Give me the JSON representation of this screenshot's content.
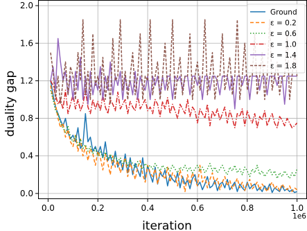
{
  "chart_data": {
    "type": "line",
    "xlabel": "iteration",
    "ylabel": "duality gap",
    "x_offset_label": "1e6",
    "xlim": [
      -0.04,
      1.04
    ],
    "ylim": [
      -0.06,
      2.06
    ],
    "xticks": [
      0.0,
      0.2,
      0.4,
      0.6,
      0.8,
      1.0
    ],
    "xtick_labels": [
      "0.0",
      "0.2",
      "0.4",
      "0.6",
      "0.8",
      "1.0"
    ],
    "yticks": [
      0.0,
      0.4,
      0.8,
      1.2,
      1.6,
      2.0
    ],
    "ytick_labels": [
      "0.0",
      "0.4",
      "0.8",
      "1.2",
      "1.6",
      "2.0"
    ],
    "grid": true,
    "legend_position": "top-right",
    "x": [
      0.01,
      0.02,
      0.03,
      0.04,
      0.05,
      0.06,
      0.07,
      0.08,
      0.09,
      0.1,
      0.11,
      0.12,
      0.13,
      0.14,
      0.15,
      0.16,
      0.17,
      0.18,
      0.19,
      0.2,
      0.21,
      0.22,
      0.23,
      0.24,
      0.25,
      0.26,
      0.27,
      0.28,
      0.29,
      0.3,
      0.31,
      0.32,
      0.33,
      0.34,
      0.35,
      0.36,
      0.37,
      0.38,
      0.39,
      0.4,
      0.41,
      0.42,
      0.43,
      0.44,
      0.45,
      0.46,
      0.47,
      0.48,
      0.49,
      0.5,
      0.51,
      0.52,
      0.53,
      0.54,
      0.55,
      0.56,
      0.57,
      0.58,
      0.59,
      0.6,
      0.61,
      0.62,
      0.63,
      0.64,
      0.65,
      0.66,
      0.67,
      0.68,
      0.69,
      0.7,
      0.71,
      0.72,
      0.73,
      0.74,
      0.75,
      0.76,
      0.77,
      0.78,
      0.79,
      0.8,
      0.81,
      0.82,
      0.83,
      0.84,
      0.85,
      0.86,
      0.87,
      0.88,
      0.89,
      0.9,
      0.91,
      0.92,
      0.93,
      0.94,
      0.95,
      0.96,
      0.97,
      0.98,
      0.99,
      1.0
    ],
    "series": [
      {
        "name": "Ground",
        "color": "#1f77b4",
        "dash": "solid",
        "values": [
          1.2,
          1.05,
          0.92,
          0.85,
          0.78,
          0.72,
          0.8,
          0.65,
          0.58,
          0.62,
          0.55,
          0.7,
          0.48,
          0.52,
          0.85,
          0.55,
          0.6,
          0.45,
          0.5,
          0.42,
          0.5,
          0.38,
          0.55,
          0.35,
          0.4,
          0.3,
          0.45,
          0.28,
          0.35,
          0.25,
          0.42,
          0.22,
          0.38,
          0.2,
          0.32,
          0.25,
          0.18,
          0.38,
          0.15,
          0.3,
          0.2,
          0.12,
          0.28,
          0.1,
          0.22,
          0.18,
          0.25,
          0.08,
          0.2,
          0.15,
          0.12,
          0.22,
          0.06,
          0.18,
          0.1,
          0.14,
          0.05,
          0.16,
          0.2,
          0.08,
          0.12,
          0.04,
          0.1,
          0.18,
          0.06,
          0.08,
          0.14,
          0.03,
          0.1,
          0.12,
          0.06,
          0.15,
          0.04,
          0.08,
          0.12,
          0.02,
          0.1,
          0.06,
          0.03,
          0.12,
          0.05,
          0.08,
          0.1,
          0.03,
          0.06,
          0.02,
          0.08,
          0.04,
          0.1,
          0.01,
          0.06,
          0.04,
          0.02,
          0.08,
          0.03,
          0.05,
          0.02,
          0.04,
          0.01,
          0.02
        ]
      },
      {
        "name": "ε = 0.2",
        "color": "#ff7f0e",
        "dash": "5,3",
        "values": [
          1.15,
          1.0,
          0.95,
          0.8,
          0.7,
          0.75,
          0.6,
          0.68,
          0.55,
          0.5,
          0.62,
          0.45,
          0.58,
          0.4,
          0.5,
          0.35,
          0.48,
          0.42,
          0.3,
          0.45,
          0.38,
          0.25,
          0.42,
          0.32,
          0.2,
          0.4,
          0.28,
          0.35,
          0.22,
          0.3,
          0.38,
          0.18,
          0.32,
          0.25,
          0.15,
          0.28,
          0.35,
          0.2,
          0.12,
          0.3,
          0.22,
          0.18,
          0.26,
          0.1,
          0.24,
          0.2,
          0.15,
          0.28,
          0.12,
          0.22,
          0.18,
          0.08,
          0.25,
          0.15,
          0.02,
          0.2,
          0.1,
          0.22,
          0.15,
          0.08,
          0.3,
          0.12,
          0.18,
          0.06,
          0.15,
          0.22,
          0.1,
          0.16,
          0.04,
          0.12,
          0.18,
          0.08,
          0.14,
          0.05,
          0.1,
          0.16,
          0.06,
          0.12,
          0.03,
          0.1,
          0.15,
          0.05,
          0.08,
          0.12,
          0.04,
          0.1,
          0.06,
          0.02,
          0.08,
          0.12,
          0.05,
          0.08,
          0.03,
          0.1,
          0.06,
          0.04,
          0.08,
          0.02,
          0.06,
          0.04
        ]
      },
      {
        "name": "ε = 0.6",
        "color": "#2ca02c",
        "dash": "1.5,2.5",
        "values": [
          1.1,
          1.0,
          0.88,
          0.85,
          0.75,
          0.7,
          0.65,
          0.72,
          0.6,
          0.55,
          0.62,
          0.5,
          0.58,
          0.48,
          0.52,
          0.45,
          0.5,
          0.42,
          0.48,
          0.4,
          0.45,
          0.38,
          0.44,
          0.36,
          0.42,
          0.35,
          0.4,
          0.34,
          0.38,
          0.32,
          0.36,
          0.3,
          0.35,
          0.32,
          0.28,
          0.34,
          0.3,
          0.26,
          0.32,
          0.28,
          0.3,
          0.26,
          0.32,
          0.28,
          0.24,
          0.3,
          0.26,
          0.28,
          0.24,
          0.3,
          0.26,
          0.22,
          0.28,
          0.25,
          0.3,
          0.24,
          0.28,
          0.22,
          0.26,
          0.3,
          0.24,
          0.28,
          0.22,
          0.26,
          0.32,
          0.24,
          0.28,
          0.22,
          0.26,
          0.3,
          0.24,
          0.2,
          0.28,
          0.24,
          0.3,
          0.22,
          0.26,
          0.2,
          0.28,
          0.24,
          0.18,
          0.26,
          0.22,
          0.3,
          0.2,
          0.24,
          0.18,
          0.22,
          0.26,
          0.2,
          0.24,
          0.16,
          0.22,
          0.18,
          0.24,
          0.2,
          0.16,
          0.22,
          0.18,
          0.26
        ]
      },
      {
        "name": "ε = 1.0",
        "color": "#d62728",
        "dash": "7,2,1.5,2",
        "values": [
          1.2,
          1.15,
          1.05,
          0.95,
          1.0,
          0.9,
          1.1,
          0.85,
          0.95,
          1.05,
          0.9,
          1.0,
          0.88,
          0.95,
          1.1,
          0.92,
          0.85,
          1.0,
          0.9,
          0.98,
          0.88,
          1.05,
          0.92,
          0.85,
          1.0,
          0.95,
          0.88,
          1.08,
          0.9,
          0.95,
          1.0,
          0.85,
          0.98,
          0.92,
          0.88,
          1.05,
          0.9,
          0.95,
          1.0,
          0.88,
          0.92,
          0.85,
          1.0,
          0.95,
          0.82,
          0.98,
          0.9,
          1.02,
          0.85,
          0.95,
          0.88,
          0.8,
          0.95,
          0.9,
          0.85,
          1.0,
          0.82,
          0.92,
          0.88,
          0.75,
          0.9,
          0.85,
          0.8,
          0.95,
          0.72,
          0.88,
          0.82,
          0.9,
          0.78,
          0.85,
          0.92,
          0.75,
          0.88,
          0.8,
          0.7,
          0.85,
          0.82,
          0.9,
          0.72,
          0.88,
          0.8,
          0.75,
          0.85,
          0.7,
          0.82,
          0.78,
          0.88,
          0.72,
          0.8,
          0.85,
          0.75,
          0.7,
          0.82,
          0.78,
          0.72,
          0.8,
          0.75,
          0.7,
          0.72,
          0.75
        ]
      },
      {
        "name": "ε = 1.4",
        "color": "#9467bd",
        "dash": "solid",
        "values": [
          1.2,
          1.35,
          1.1,
          1.65,
          1.4,
          1.2,
          1.3,
          1.05,
          1.25,
          1.0,
          1.3,
          1.1,
          1.45,
          1.0,
          1.25,
          0.95,
          1.3,
          1.05,
          1.2,
          1.1,
          1.35,
          1.0,
          1.25,
          1.1,
          1.4,
          1.05,
          1.25,
          1.15,
          1.3,
          1.0,
          1.25,
          1.1,
          1.2,
          1.05,
          1.3,
          1.0,
          1.25,
          1.15,
          1.1,
          1.25,
          1.0,
          1.25,
          1.15,
          1.25,
          1.05,
          1.25,
          1.1,
          1.25,
          1.25,
          1.0,
          1.25,
          1.2,
          1.25,
          1.1,
          1.25,
          1.25,
          1.05,
          1.25,
          1.25,
          1.15,
          1.25,
          1.0,
          1.25,
          1.25,
          1.1,
          1.25,
          1.25,
          1.2,
          1.05,
          1.25,
          1.25,
          1.25,
          1.1,
          1.25,
          0.9,
          1.25,
          1.25,
          1.15,
          1.25,
          1.25,
          1.0,
          1.25,
          1.25,
          1.25,
          1.1,
          1.25,
          1.25,
          1.05,
          1.25,
          1.25,
          1.25,
          1.15,
          1.25,
          1.25,
          0.95,
          1.25,
          1.25,
          1.25,
          1.25,
          1.25
        ]
      },
      {
        "name": "ε = 1.8",
        "color": "#8c564b",
        "dash": "4,2",
        "values": [
          1.5,
          1.3,
          1.0,
          1.25,
          0.95,
          1.2,
          1.4,
          1.05,
          1.35,
          1.25,
          1.0,
          1.5,
          1.2,
          1.85,
          1.05,
          1.3,
          1.0,
          1.7,
          1.15,
          1.25,
          1.05,
          1.45,
          1.0,
          1.25,
          0.95,
          1.65,
          1.2,
          1.25,
          1.85,
          1.1,
          1.3,
          1.0,
          1.25,
          1.5,
          1.05,
          1.25,
          1.7,
          1.0,
          1.25,
          1.2,
          1.85,
          1.05,
          1.25,
          1.4,
          1.0,
          1.25,
          1.6,
          1.1,
          1.25,
          1.85,
          1.0,
          1.25,
          1.45,
          1.05,
          1.25,
          1.25,
          1.7,
          1.0,
          1.25,
          1.4,
          1.1,
          1.25,
          1.85,
          1.05,
          1.25,
          1.5,
          1.0,
          1.25,
          1.25,
          1.7,
          1.1,
          1.25,
          1.45,
          1.05,
          1.25,
          1.85,
          1.0,
          1.25,
          1.6,
          1.1,
          1.25,
          1.25,
          1.7,
          1.05,
          1.25,
          1.5,
          1.0,
          1.25,
          1.85,
          1.1,
          1.25,
          1.4,
          1.05,
          1.25,
          1.25,
          1.7,
          1.0,
          1.25,
          1.5,
          1.25
        ]
      }
    ]
  }
}
